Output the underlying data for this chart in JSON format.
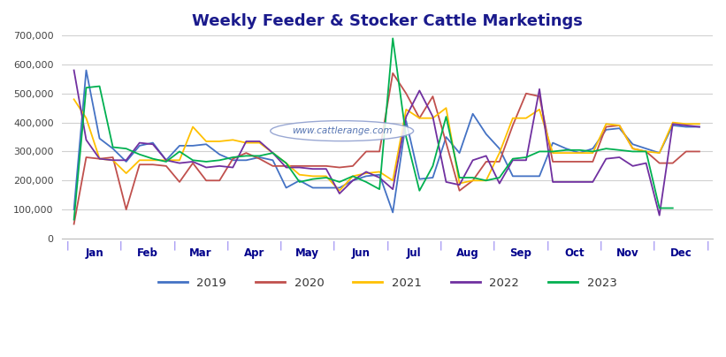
{
  "title": "Weekly Feeder & Stocker Cattle Marketings",
  "title_color": "#1a1a8c",
  "background_color": "#ffffff",
  "watermark": "www.cattlerange.com",
  "ylim": [
    0,
    700000
  ],
  "yticks": [
    0,
    100000,
    200000,
    300000,
    400000,
    500000,
    600000,
    700000
  ],
  "months": [
    "Jan",
    "Feb",
    "Mar",
    "Apr",
    "May",
    "Jun",
    "Jul",
    "Aug",
    "Sep",
    "Oct",
    "Nov",
    "Dec"
  ],
  "legend_order": [
    "2019",
    "2020",
    "2021",
    "2022",
    "2023"
  ],
  "legend_colors": {
    "2019": "#4472c4",
    "2020": "#c0504d",
    "2021": "#ffc000",
    "2022": "#7030a0",
    "2023": "#00b050"
  },
  "series": {
    "2019": {
      "color": "#4472c4",
      "x": [
        0.12,
        0.35,
        0.6,
        0.85,
        1.1,
        1.35,
        1.6,
        1.85,
        2.1,
        2.35,
        2.6,
        2.85,
        3.1,
        3.35,
        3.6,
        3.85,
        4.1,
        4.35,
        4.6,
        4.85,
        5.1,
        5.35,
        5.6,
        5.85,
        6.1,
        6.35,
        6.6,
        6.85,
        7.1,
        7.35,
        7.6,
        7.85,
        8.1,
        8.35,
        8.6,
        8.85,
        9.1,
        9.35,
        9.6,
        9.85,
        10.1,
        10.35,
        10.6,
        10.85,
        11.1,
        11.35,
        11.6,
        11.85
      ],
      "y": [
        100000,
        580000,
        345000,
        310000,
        265000,
        320000,
        330000,
        270000,
        320000,
        320000,
        325000,
        290000,
        270000,
        270000,
        280000,
        270000,
        175000,
        200000,
        175000,
        175000,
        175000,
        200000,
        215000,
        220000,
        90000,
        405000,
        205000,
        210000,
        350000,
        295000,
        430000,
        360000,
        310000,
        215000,
        215000,
        215000,
        330000,
        310000,
        295000,
        310000,
        375000,
        380000,
        325000,
        310000,
        295000,
        390000,
        385000,
        385000
      ]
    },
    "2020": {
      "color": "#c0504d",
      "x": [
        0.12,
        0.35,
        0.6,
        0.85,
        1.1,
        1.35,
        1.6,
        1.85,
        2.1,
        2.35,
        2.6,
        2.85,
        3.1,
        3.35,
        3.6,
        3.85,
        4.1,
        4.35,
        4.6,
        4.85,
        5.1,
        5.35,
        5.6,
        5.85,
        6.1,
        6.35,
        6.6,
        6.85,
        7.1,
        7.35,
        7.6,
        7.85,
        8.1,
        8.35,
        8.6,
        8.85,
        9.1,
        9.35,
        9.6,
        9.85,
        10.1,
        10.35,
        10.6,
        10.85,
        11.1,
        11.35,
        11.6,
        11.85
      ],
      "y": [
        50000,
        280000,
        275000,
        280000,
        100000,
        255000,
        255000,
        250000,
        195000,
        260000,
        200000,
        200000,
        275000,
        295000,
        275000,
        250000,
        250000,
        250000,
        250000,
        250000,
        245000,
        250000,
        300000,
        300000,
        570000,
        500000,
        415000,
        490000,
        330000,
        165000,
        200000,
        265000,
        265000,
        390000,
        500000,
        490000,
        265000,
        265000,
        265000,
        265000,
        385000,
        390000,
        310000,
        300000,
        260000,
        260000,
        300000,
        300000
      ]
    },
    "2021": {
      "color": "#ffc000",
      "x": [
        0.12,
        0.35,
        0.6,
        0.85,
        1.1,
        1.35,
        1.6,
        1.85,
        2.1,
        2.35,
        2.6,
        2.85,
        3.1,
        3.35,
        3.6,
        3.85,
        4.1,
        4.35,
        4.6,
        4.85,
        5.1,
        5.35,
        5.6,
        5.85,
        6.1,
        6.35,
        6.6,
        6.85,
        7.1,
        7.35,
        7.6,
        7.85,
        8.1,
        8.35,
        8.6,
        8.85,
        9.1,
        9.35,
        9.6,
        9.85,
        10.1,
        10.35,
        10.6,
        10.85,
        11.1,
        11.35,
        11.6,
        11.85
      ],
      "y": [
        480000,
        415000,
        275000,
        270000,
        225000,
        270000,
        270000,
        270000,
        270000,
        385000,
        335000,
        335000,
        340000,
        330000,
        330000,
        295000,
        260000,
        220000,
        215000,
        215000,
        165000,
        215000,
        225000,
        230000,
        200000,
        445000,
        415000,
        415000,
        450000,
        190000,
        200000,
        200000,
        295000,
        415000,
        415000,
        445000,
        295000,
        295000,
        295000,
        295000,
        395000,
        390000,
        310000,
        300000,
        295000,
        400000,
        395000,
        395000
      ]
    },
    "2022": {
      "color": "#7030a0",
      "x": [
        0.12,
        0.35,
        0.6,
        0.85,
        1.1,
        1.35,
        1.6,
        1.85,
        2.1,
        2.35,
        2.6,
        2.85,
        3.1,
        3.35,
        3.6,
        3.85,
        4.1,
        4.35,
        4.6,
        4.85,
        5.1,
        5.35,
        5.6,
        5.85,
        6.1,
        6.35,
        6.6,
        6.85,
        7.1,
        7.35,
        7.6,
        7.85,
        8.1,
        8.35,
        8.6,
        8.85,
        9.1,
        9.35,
        9.6,
        9.85,
        10.1,
        10.35,
        10.6,
        10.85,
        11.1,
        11.35,
        11.6,
        11.85
      ],
      "y": [
        580000,
        340000,
        275000,
        270000,
        270000,
        330000,
        325000,
        270000,
        260000,
        265000,
        245000,
        250000,
        245000,
        335000,
        335000,
        295000,
        245000,
        245000,
        240000,
        240000,
        155000,
        200000,
        230000,
        210000,
        170000,
        420000,
        510000,
        420000,
        195000,
        185000,
        270000,
        285000,
        190000,
        270000,
        270000,
        515000,
        195000,
        195000,
        195000,
        195000,
        275000,
        280000,
        250000,
        260000,
        80000,
        395000,
        390000,
        385000
      ]
    },
    "2023": {
      "color": "#00b050",
      "x": [
        0.12,
        0.35,
        0.6,
        0.85,
        1.1,
        1.35,
        1.6,
        1.85,
        2.1,
        2.35,
        2.6,
        2.85,
        3.1,
        3.35,
        3.6,
        3.85,
        4.1,
        4.35,
        4.6,
        4.85,
        5.1,
        5.35,
        5.6,
        5.85,
        6.1,
        6.35,
        6.6,
        6.85,
        7.1,
        7.35,
        7.6,
        7.85,
        8.1,
        8.35,
        8.6,
        8.85,
        9.1,
        9.35,
        9.6,
        9.85,
        10.1,
        10.35,
        10.6,
        10.85,
        11.1,
        11.35
      ],
      "y": [
        65000,
        520000,
        525000,
        315000,
        310000,
        290000,
        275000,
        265000,
        300000,
        270000,
        265000,
        270000,
        280000,
        285000,
        285000,
        295000,
        260000,
        195000,
        205000,
        210000,
        195000,
        215000,
        195000,
        170000,
        690000,
        350000,
        165000,
        250000,
        420000,
        210000,
        210000,
        200000,
        210000,
        275000,
        280000,
        300000,
        300000,
        305000,
        305000,
        300000,
        310000,
        305000,
        300000,
        300000,
        105000,
        105000
      ]
    }
  }
}
